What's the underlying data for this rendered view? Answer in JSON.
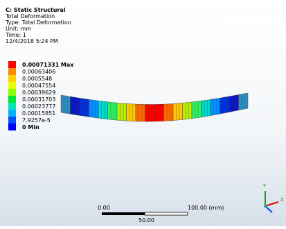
{
  "header": {
    "title": "C: Static Structural",
    "lines": [
      "Total Deformation",
      "Type: Total Deformation",
      "Unit: mm",
      "Time: 1",
      "12/4/2018 5:24 PM"
    ]
  },
  "legend": [
    {
      "label": "0.00071331 Max",
      "color": "#ff0000"
    },
    {
      "label": "0.00063406",
      "color": "#ff8c00"
    },
    {
      "label": "0.0005548",
      "color": "#ffd200"
    },
    {
      "label": "0.00047554",
      "color": "#e6ff00"
    },
    {
      "label": "0.00039629",
      "color": "#8cff00"
    },
    {
      "label": "0.00031703",
      "color": "#00e632"
    },
    {
      "label": "0.00023777",
      "color": "#00e6b4"
    },
    {
      "label": "0.00015851",
      "color": "#00b4ff"
    },
    {
      "label": "7.9257e-5",
      "color": "#0050ff"
    },
    {
      "label": "0 Min",
      "color": "#0000ff"
    }
  ],
  "logo": {
    "name": "ANSYS",
    "version": "R18.2"
  },
  "scale_bar": {
    "start": "0.00",
    "end": "100.00 (mm)",
    "middle": "50.00"
  },
  "triad": {
    "x": "X",
    "y": "Y"
  }
}
